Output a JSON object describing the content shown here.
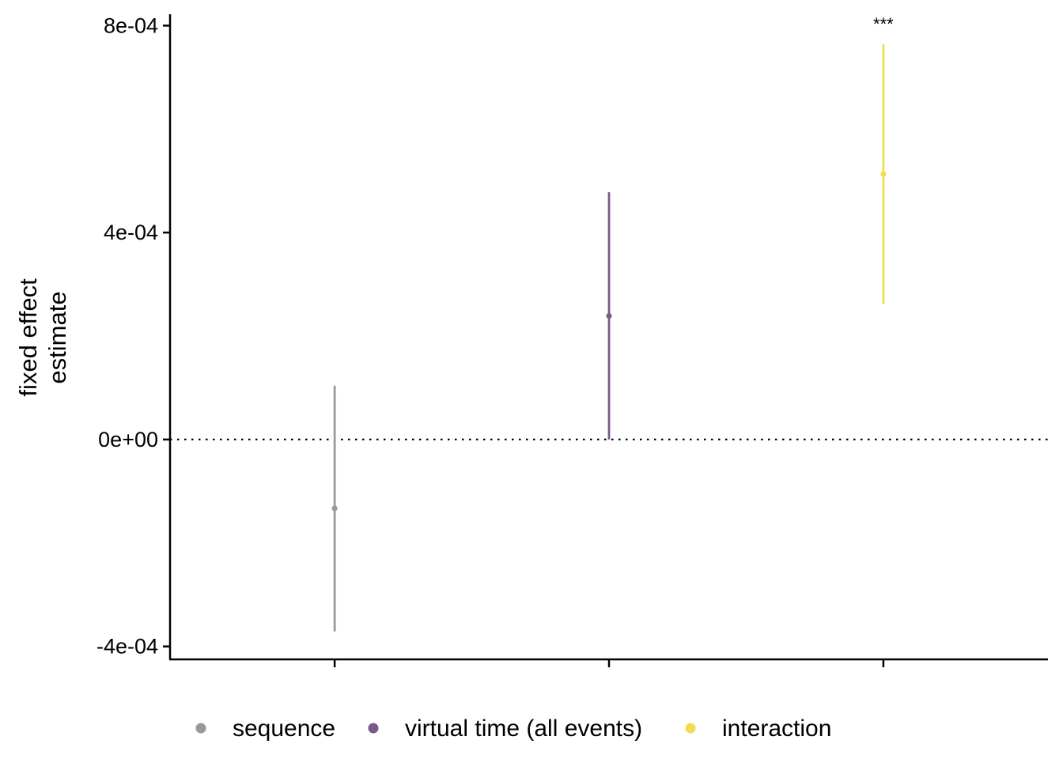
{
  "chart_data": {
    "type": "pointrange",
    "title": "",
    "xlabel": "",
    "ylabel_lines": [
      "fixed effect",
      "estimate"
    ],
    "ylim": [
      -0.000425,
      0.000822
    ],
    "yticks": [
      {
        "value": -0.0004,
        "label": "-4e-04"
      },
      {
        "value": 0,
        "label": "0e+00"
      },
      {
        "value": 0.0004,
        "label": "4e-04"
      },
      {
        "value": 0.0008,
        "label": "8e-04"
      }
    ],
    "reference_line": {
      "value": 0,
      "style": "dotted"
    },
    "grid": false,
    "legend_position": "bottom",
    "series": [
      {
        "name": "sequence",
        "color": "#999999",
        "estimate": -0.000133,
        "lower": -0.000371,
        "upper": 0.000104,
        "significance": ""
      },
      {
        "name": "virtual time (all events)",
        "color": "#7b5a85",
        "estimate": 0.000239,
        "lower": 0.0,
        "upper": 0.000478,
        "significance": ""
      },
      {
        "name": "interaction",
        "color": "#f2dd52",
        "estimate": 0.000513,
        "lower": 0.000262,
        "upper": 0.000764,
        "significance": "***"
      }
    ]
  }
}
